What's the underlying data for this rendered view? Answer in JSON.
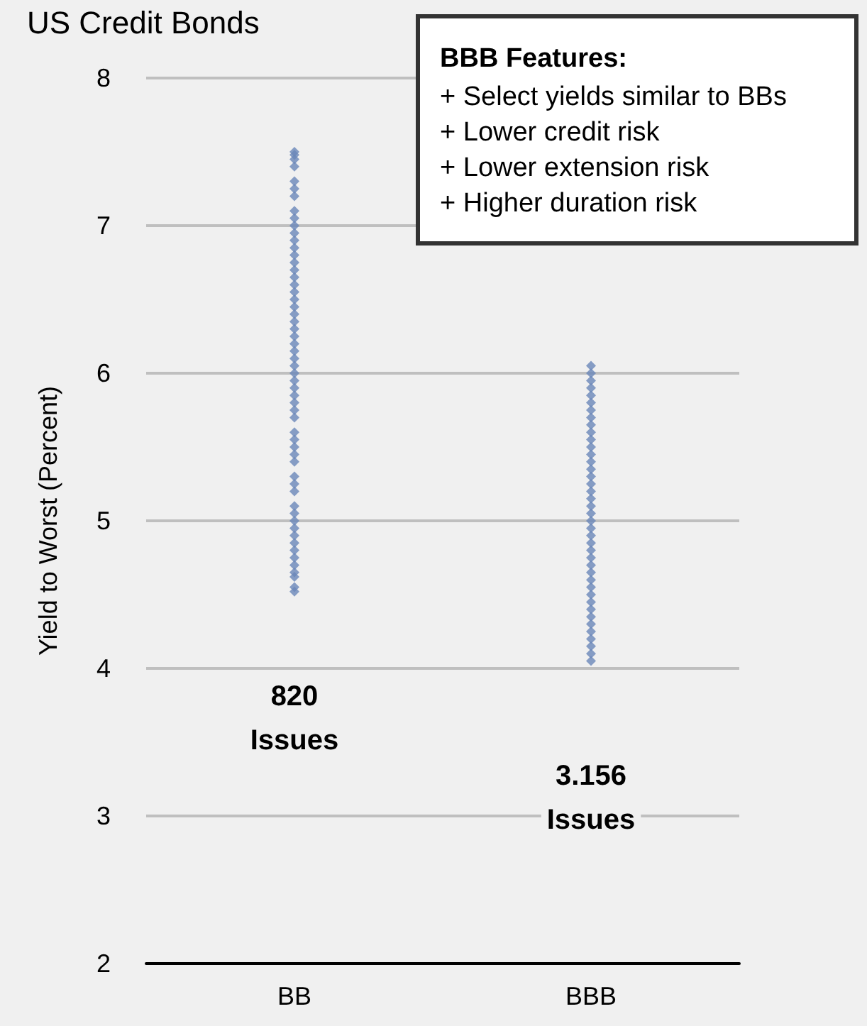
{
  "chart_data": {
    "type": "scatter",
    "title": "US Credit Bonds",
    "ylabel": "Yield to Worst (Percent)",
    "categories": [
      "BB",
      "BBB"
    ],
    "ylim": [
      2,
      8
    ],
    "yticks": [
      2,
      3,
      4,
      5,
      6,
      7,
      8
    ],
    "grid": "y",
    "marker": "diamond",
    "series": [
      {
        "color": "#6a87b9",
        "x": [
          "BB",
          "BB",
          "BB",
          "BB",
          "BB",
          "BB",
          "BB",
          "BB",
          "BB",
          "BB",
          "BB",
          "BB",
          "BB",
          "BB",
          "BB",
          "BB",
          "BB",
          "BB",
          "BB",
          "BB",
          "BB",
          "BB",
          "BB",
          "BB",
          "BB",
          "BB",
          "BB",
          "BB",
          "BB",
          "BB",
          "BB",
          "BB",
          "BB",
          "BB",
          "BB",
          "BB",
          "BB",
          "BB",
          "BB",
          "BB",
          "BB",
          "BB",
          "BB",
          "BB",
          "BB",
          "BB",
          "BB",
          "BB",
          "BB",
          "BB",
          "BB",
          "BB",
          "BB",
          "BB",
          "BB",
          "BB",
          "BB"
        ],
        "values": [
          7.45,
          7.48,
          7.5,
          7.4,
          7.2,
          7.25,
          7.3,
          7.0,
          6.95,
          7.05,
          7.1,
          6.85,
          6.8,
          6.9,
          6.7,
          6.75,
          6.65,
          6.6,
          6.55,
          6.5,
          6.45,
          6.4,
          6.35,
          6.3,
          6.25,
          6.2,
          6.15,
          6.1,
          6.05,
          6.0,
          5.95,
          5.9,
          5.85,
          5.8,
          5.75,
          5.7,
          5.6,
          5.55,
          5.5,
          5.45,
          5.4,
          5.3,
          5.25,
          5.2,
          5.1,
          5.05,
          5.0,
          4.95,
          4.9,
          4.85,
          4.8,
          4.75,
          4.7,
          4.65,
          4.55,
          4.52,
          4.62
        ]
      },
      {
        "color": "#6a87b9",
        "x": [
          "BBB",
          "BBB",
          "BBB",
          "BBB",
          "BBB",
          "BBB",
          "BBB",
          "BBB",
          "BBB",
          "BBB",
          "BBB",
          "BBB",
          "BBB",
          "BBB",
          "BBB",
          "BBB",
          "BBB",
          "BBB",
          "BBB",
          "BBB",
          "BBB",
          "BBB",
          "BBB",
          "BBB",
          "BBB",
          "BBB",
          "BBB",
          "BBB",
          "BBB",
          "BBB",
          "BBB",
          "BBB",
          "BBB",
          "BBB",
          "BBB",
          "BBB",
          "BBB",
          "BBB",
          "BBB",
          "BBB",
          "BBB"
        ],
        "values": [
          6.05,
          6.0,
          5.95,
          5.9,
          5.85,
          5.8,
          5.75,
          5.7,
          5.65,
          5.6,
          5.55,
          5.5,
          5.45,
          5.4,
          5.35,
          5.3,
          5.25,
          5.2,
          5.15,
          5.1,
          5.05,
          5.0,
          4.95,
          4.9,
          4.85,
          4.8,
          4.75,
          4.7,
          4.65,
          4.6,
          4.55,
          4.5,
          4.45,
          4.4,
          4.35,
          4.3,
          4.25,
          4.2,
          4.15,
          4.1,
          4.05
        ]
      }
    ],
    "annotations": [
      "820\nIssues",
      "3.156\nIssues",
      "BBB Features:",
      "+ Select yields similar to BBs",
      "+ Lower credit risk",
      "+ Lower extension risk",
      "+ Higher duration risk"
    ]
  }
}
